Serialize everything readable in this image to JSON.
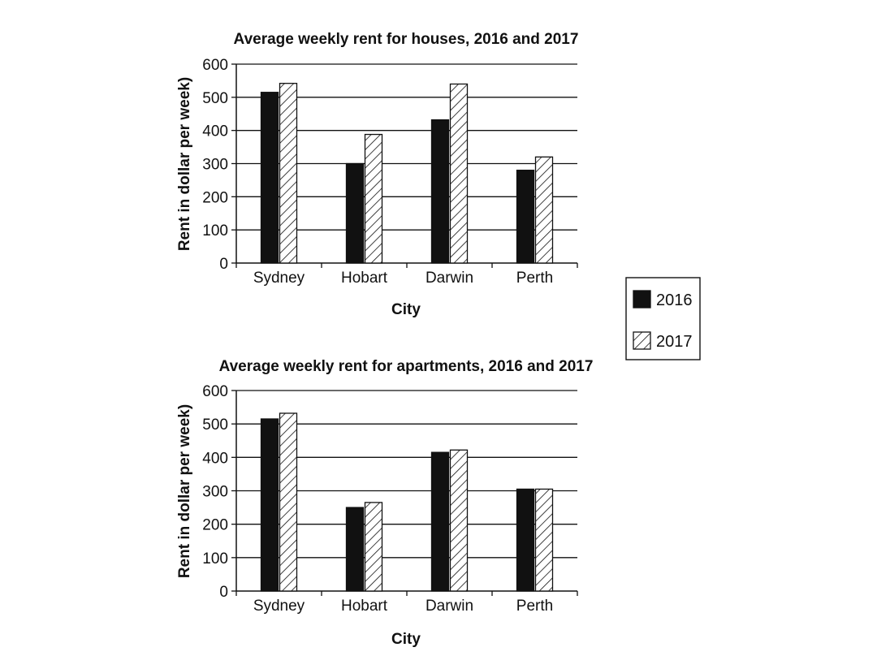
{
  "chart_data": [
    {
      "type": "bar",
      "title": "Average weekly rent for houses, 2016 and 2017",
      "xlabel": "City",
      "ylabel": "Rent in dollar per week)",
      "categories": [
        "Sydney",
        "Hobart",
        "Darwin",
        "Perth"
      ],
      "ylim": [
        0,
        600
      ],
      "yticks": [
        "0",
        "100",
        "200",
        "300",
        "400",
        "500",
        "600"
      ],
      "grid": true,
      "series": [
        {
          "name": "2016",
          "values": [
            515,
            300,
            432,
            280
          ]
        },
        {
          "name": "2017",
          "values": [
            542,
            388,
            540,
            320
          ]
        }
      ]
    },
    {
      "type": "bar",
      "title": "Average weekly rent for apartments, 2016 and 2017",
      "xlabel": "City",
      "ylabel": "Rent in dollar per week)",
      "categories": [
        "Sydney",
        "Hobart",
        "Darwin",
        "Perth"
      ],
      "ylim": [
        0,
        600
      ],
      "yticks": [
        "0",
        "100",
        "200",
        "300",
        "400",
        "500",
        "600"
      ],
      "grid": true,
      "series": [
        {
          "name": "2016",
          "values": [
            515,
            250,
            415,
            305
          ]
        },
        {
          "name": "2017",
          "values": [
            532,
            265,
            422,
            305
          ]
        }
      ]
    }
  ],
  "legend": {
    "placement": "right",
    "items": [
      {
        "label": "2016",
        "style": "solid",
        "color": "#111111"
      },
      {
        "label": "2017",
        "style": "hatched",
        "color": "#111111"
      }
    ]
  }
}
